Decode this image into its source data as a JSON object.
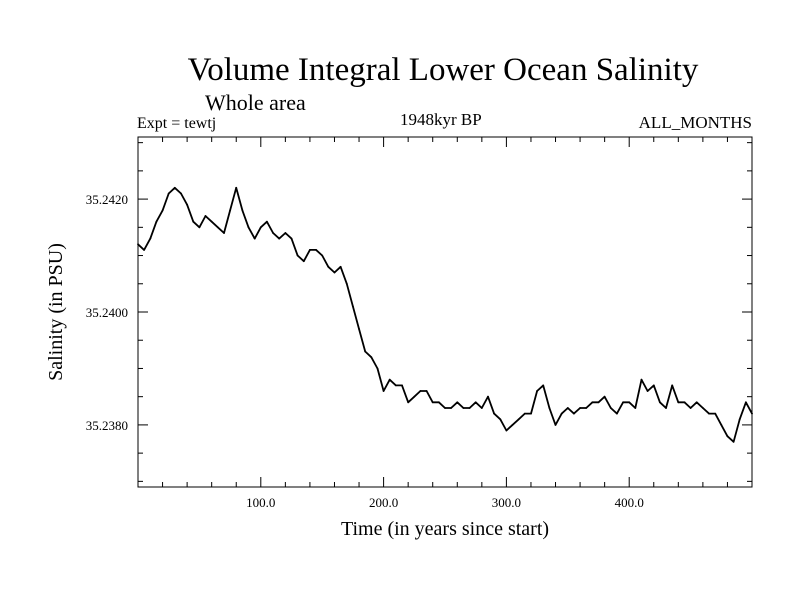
{
  "chart_data": {
    "type": "line",
    "title": "Volume Integral Lower Ocean Salinity",
    "subtitle": "Whole area",
    "experiment_label": "Expt = tewtj",
    "period_label": "1948kyr BP",
    "months_label": "ALL_MONTHS",
    "xlabel": "Time (in years since start)",
    "ylabel": "Salinity (in PSU)",
    "xlim": [
      0,
      500
    ],
    "ylim": [
      35.2369,
      35.2431
    ],
    "x_ticks": [
      {
        "value": 100,
        "label": "100.0"
      },
      {
        "value": 200,
        "label": "200.0"
      },
      {
        "value": 300,
        "label": "300.0"
      },
      {
        "value": 400,
        "label": "400.0"
      }
    ],
    "y_ticks": [
      {
        "value": 35.238,
        "label": "35.2380"
      },
      {
        "value": 35.24,
        "label": "35.2400"
      },
      {
        "value": 35.242,
        "label": "35.2420"
      }
    ],
    "series": [
      {
        "name": "Salinity",
        "x": [
          0,
          5,
          10,
          15,
          20,
          25,
          30,
          35,
          40,
          45,
          50,
          55,
          60,
          65,
          70,
          75,
          80,
          85,
          90,
          95,
          100,
          105,
          110,
          115,
          120,
          125,
          130,
          135,
          140,
          145,
          150,
          155,
          160,
          165,
          170,
          175,
          180,
          185,
          190,
          195,
          200,
          205,
          210,
          215,
          220,
          225,
          230,
          235,
          240,
          245,
          250,
          255,
          260,
          265,
          270,
          275,
          280,
          285,
          290,
          295,
          300,
          305,
          310,
          315,
          320,
          325,
          330,
          335,
          340,
          345,
          350,
          355,
          360,
          365,
          370,
          375,
          380,
          385,
          390,
          395,
          400,
          405,
          410,
          415,
          420,
          425,
          430,
          435,
          440,
          445,
          450,
          455,
          460,
          465,
          470,
          475,
          480,
          485,
          490,
          495,
          500
        ],
        "values": [
          35.2412,
          35.2411,
          35.2413,
          35.2416,
          35.2418,
          35.2421,
          35.2422,
          35.2421,
          35.2419,
          35.2416,
          35.2415,
          35.2417,
          35.2416,
          35.2415,
          35.2414,
          35.2418,
          35.2422,
          35.2418,
          35.2415,
          35.2413,
          35.2415,
          35.2416,
          35.2414,
          35.2413,
          35.2414,
          35.2413,
          35.241,
          35.2409,
          35.2411,
          35.2411,
          35.241,
          35.2408,
          35.2407,
          35.2408,
          35.2405,
          35.2401,
          35.2397,
          35.2393,
          35.2392,
          35.239,
          35.2386,
          35.2388,
          35.2387,
          35.2387,
          35.2384,
          35.2385,
          35.2386,
          35.2386,
          35.2384,
          35.2384,
          35.2383,
          35.2383,
          35.2384,
          35.2383,
          35.2383,
          35.2384,
          35.2383,
          35.2385,
          35.2382,
          35.2381,
          35.2379,
          35.238,
          35.2381,
          35.2382,
          35.2382,
          35.2386,
          35.2387,
          35.2383,
          35.238,
          35.2382,
          35.2383,
          35.2382,
          35.2383,
          35.2383,
          35.2384,
          35.2384,
          35.2385,
          35.2383,
          35.2382,
          35.2384,
          35.2384,
          35.2383,
          35.2388,
          35.2386,
          35.2387,
          35.2384,
          35.2383,
          35.2387,
          35.2384,
          35.2384,
          35.2383,
          35.2384,
          35.2383,
          35.2382,
          35.2382,
          35.238,
          35.2378,
          35.2377,
          35.2381,
          35.2384,
          35.2382
        ]
      }
    ]
  }
}
